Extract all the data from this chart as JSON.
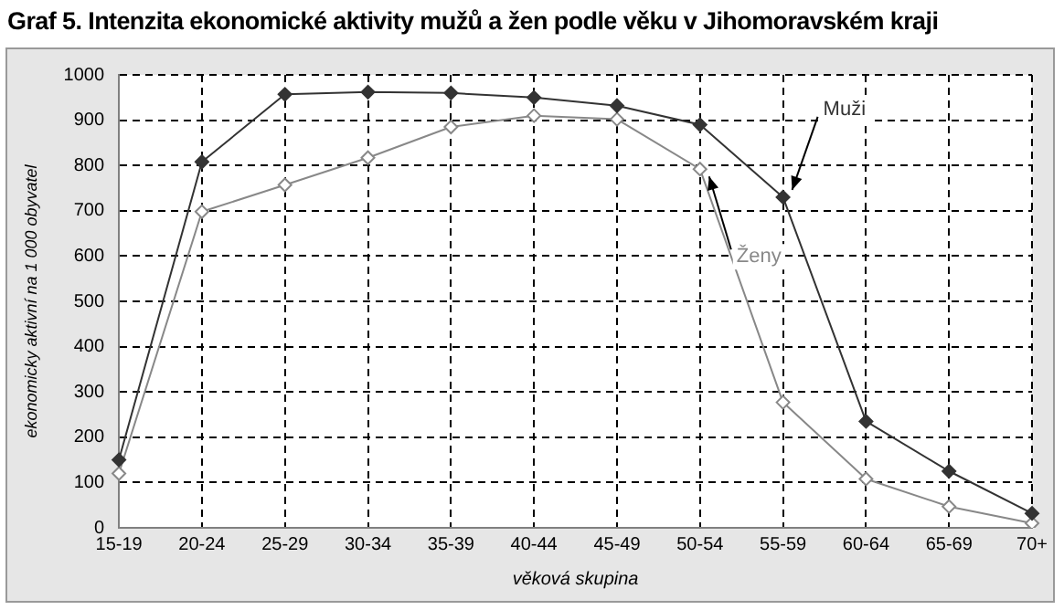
{
  "chart_data": {
    "type": "line",
    "title": "Graf 5. Intenzita ekonomické aktivity mužů a žen podle věku v Jihomoravském kraji",
    "xlabel": "věková skupina",
    "ylabel": "ekonomicky aktivní na 1 000 obyvatel",
    "categories": [
      "15-19",
      "20-24",
      "25-29",
      "30-34",
      "35-39",
      "40-44",
      "45-49",
      "50-54",
      "55-59",
      "60-64",
      "65-69",
      "70+"
    ],
    "series": [
      {
        "name": "Muži",
        "color": "#333333",
        "values": [
          150,
          808,
          957,
          962,
          960,
          950,
          932,
          890,
          730,
          235,
          125,
          32
        ]
      },
      {
        "name": "Ženy",
        "color": "#888888",
        "values": [
          120,
          698,
          757,
          817,
          885,
          910,
          902,
          792,
          277,
          108,
          47,
          10
        ]
      }
    ],
    "ylim": [
      0,
      1000
    ],
    "yticks": [
      0,
      100,
      200,
      300,
      400,
      500,
      600,
      700,
      800,
      900,
      1000
    ],
    "grid": true,
    "legend": false,
    "marker": "diamond",
    "line_style": "solid"
  }
}
